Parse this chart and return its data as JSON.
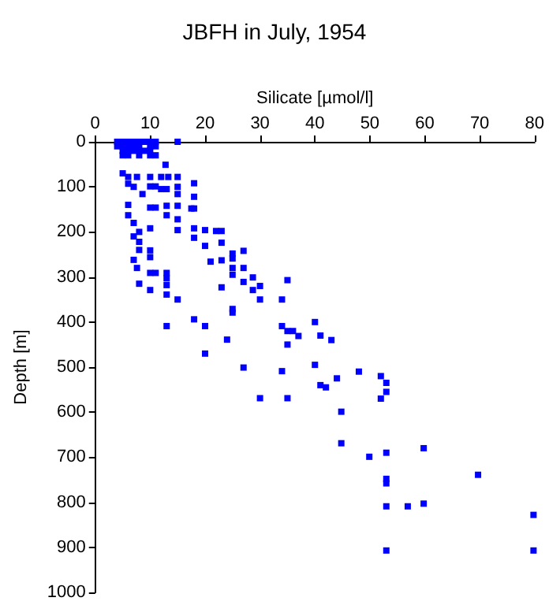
{
  "chart_data": {
    "type": "scatter",
    "title": "JBFH in July, 1954",
    "xlabel": "Silicate [µmol/l]",
    "ylabel": "Depth [m]",
    "xlim": [
      0,
      80
    ],
    "xticks": [
      0,
      10,
      20,
      30,
      40,
      50,
      60,
      70,
      80
    ],
    "ylim": [
      1000,
      0
    ],
    "yticks": [
      0,
      100,
      200,
      300,
      400,
      500,
      600,
      700,
      800,
      900,
      1000
    ],
    "grid": false,
    "marker": "square",
    "series": [
      {
        "color": "#0000ff",
        "x": [
          4,
          5,
          6,
          7,
          8,
          9,
          10,
          11,
          15,
          4,
          5,
          6,
          7,
          8,
          10,
          11,
          5,
          6,
          7,
          8,
          9,
          10,
          5,
          6,
          8,
          10,
          11,
          12.8,
          5,
          6,
          7.6,
          10,
          12,
          13.3,
          15,
          18,
          6,
          7,
          8.6,
          10,
          11,
          12,
          13,
          15,
          15,
          18,
          6,
          10,
          11,
          13,
          13,
          15,
          17.5,
          18,
          6,
          7,
          15,
          8,
          10,
          15,
          18,
          20,
          22,
          23,
          7,
          8,
          18,
          20,
          8,
          10,
          23,
          25,
          27,
          10,
          21,
          23,
          25,
          7,
          7.6,
          10,
          11,
          13,
          13,
          25,
          27,
          25,
          8,
          13,
          10,
          23,
          27,
          28.7,
          30,
          28.7,
          35,
          13,
          15,
          30,
          34,
          25,
          25,
          18,
          20,
          13,
          34,
          35,
          37,
          24,
          36,
          40,
          41,
          43,
          35,
          20,
          40,
          27,
          34,
          48,
          44,
          52,
          41,
          42,
          53,
          53,
          30,
          35,
          52,
          44.8,
          44.8,
          49.9,
          53,
          59.8,
          69.7,
          53,
          53,
          79.8,
          53,
          56.9,
          59.8,
          53,
          79.8
        ],
        "values": [
          0,
          0,
          0,
          0,
          0,
          0,
          0,
          0,
          0,
          10,
          10,
          10,
          10,
          10,
          10,
          10,
          20,
          20,
          20,
          20,
          20,
          20,
          30,
          30,
          30,
          30,
          30,
          51,
          70,
          78,
          78,
          78,
          78,
          78,
          78,
          92,
          93,
          100,
          116,
          99,
          99,
          105,
          105,
          100,
          116,
          122,
          140,
          146,
          146,
          142,
          163,
          142,
          148,
          148,
          163,
          180,
          172,
          200,
          192,
          196,
          192,
          196,
          198,
          198,
          210,
          222,
          213,
          231,
          240,
          241,
          224,
          248,
          242,
          256,
          266,
          263,
          259,
          262,
          280,
          291,
          291,
          291,
          303,
          280,
          280,
          295,
          315,
          318,
          329,
          323,
          311,
          301,
          320,
          329,
          307,
          339,
          350,
          350,
          350,
          371,
          379,
          394,
          409,
          409,
          409,
          420,
          431,
          439,
          420,
          400,
          430,
          440,
          450,
          470,
          495,
          501,
          509,
          510,
          525,
          520,
          540,
          545,
          535,
          555,
          569,
          569,
          570,
          599,
          669,
          699,
          690,
          680,
          739,
          748,
          758,
          828,
          809,
          809,
          803,
          907,
          907
        ]
      }
    ]
  }
}
